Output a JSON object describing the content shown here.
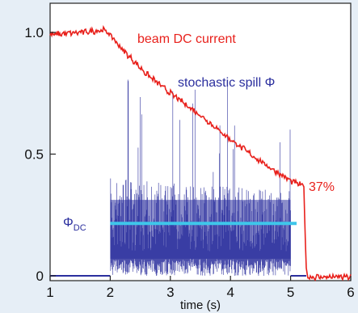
{
  "chart_data": {
    "type": "line",
    "xlabel": "time (s)",
    "ylabel": "",
    "xlim": [
      1,
      6
    ],
    "ylim": [
      -0.02,
      1.12
    ],
    "xticks": [
      "1",
      "2",
      "3",
      "4",
      "5",
      "6"
    ],
    "xtick_values": [
      1,
      2,
      3,
      4,
      5,
      6
    ],
    "yticks": [
      "0",
      "0.5",
      "1.0"
    ],
    "ytick_values": [
      0,
      0.5,
      1.0
    ],
    "grid": false,
    "series": [
      {
        "name": "beam DC current",
        "color": "#e8211c",
        "x": [
          1.0,
          1.5,
          1.9,
          2.0,
          2.2,
          2.6,
          3.0,
          3.5,
          4.0,
          4.5,
          5.0,
          5.2,
          5.22,
          5.26,
          5.3,
          5.6,
          6.0
        ],
        "y": [
          0.99,
          1.0,
          1.01,
          0.99,
          0.93,
          0.83,
          0.75,
          0.66,
          0.56,
          0.47,
          0.39,
          0.37,
          0.37,
          0.02,
          -0.005,
          -0.005,
          -0.005
        ]
      },
      {
        "name": "stochastic spill Φ",
        "color": "#2b2f9e",
        "x": [
          1.0,
          2.0,
          2.0,
          5.0,
          5.0,
          6.0
        ],
        "envelope_low": [
          0.0,
          0.0,
          0.07,
          0.07,
          0.0,
          0.0
        ],
        "envelope_high": [
          0.0,
          0.0,
          0.4,
          0.35,
          0.0,
          0.0
        ]
      },
      {
        "name": "ΦDC",
        "color": "#3ec6ea",
        "x": [
          2.0,
          5.1
        ],
        "y": [
          0.215,
          0.215
        ]
      }
    ],
    "annotations": [
      {
        "text": "beam DC current",
        "color": "#e8211c"
      },
      {
        "text": "stochastic spill Φ",
        "color": "#2b2f9e"
      },
      {
        "text": "37%",
        "color": "#e8211c"
      },
      {
        "text": "Φ",
        "sub": "DC",
        "color": "#2b2f9e"
      }
    ]
  }
}
